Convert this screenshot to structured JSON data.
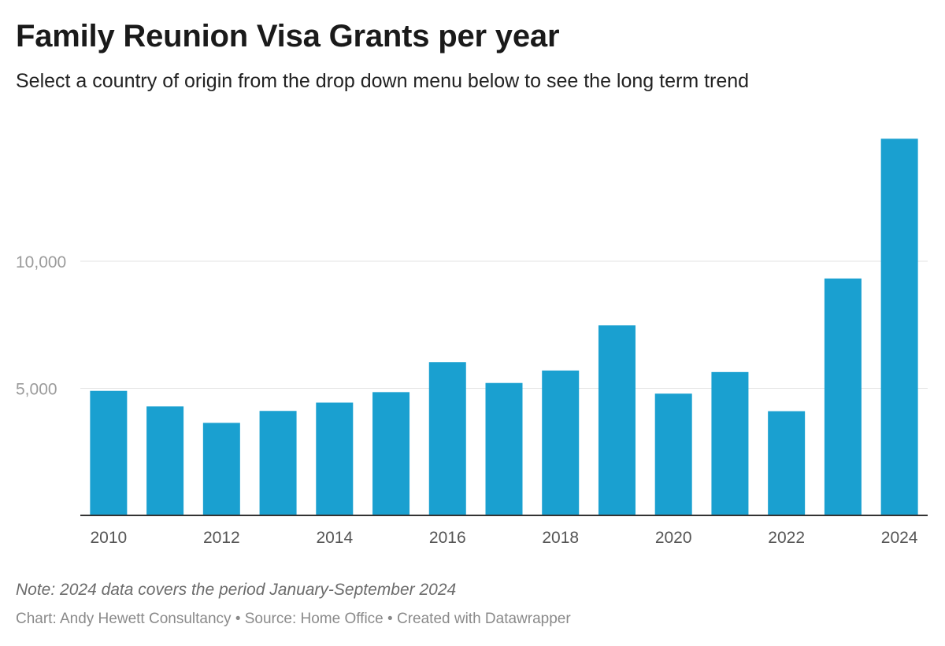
{
  "title": "Family Reunion Visa Grants per year",
  "subtitle": "Select a country of origin from the drop down menu below to see the long term trend",
  "note": "Note: 2024 data covers the period January-September 2024",
  "byline": {
    "chart_by": "Chart: Andy Hewett Consultancy",
    "separator": "•",
    "source": "Source: Home Office",
    "created_with": "Created with Datawrapper"
  },
  "colors": {
    "bar": "#1aa0d0"
  },
  "chart_data": {
    "type": "bar",
    "title": "Family Reunion Visa Grants per year",
    "subtitle": "Select a country of origin from the drop down menu below to see the long term trend",
    "categories": [
      "2010",
      "2011",
      "2012",
      "2013",
      "2014",
      "2015",
      "2016",
      "2017",
      "2018",
      "2019",
      "2020",
      "2021",
      "2022",
      "2023",
      "2024"
    ],
    "values": [
      4900,
      4290,
      3640,
      4110,
      4440,
      4850,
      6030,
      5210,
      5700,
      7480,
      4790,
      5640,
      4100,
      9320,
      14820
    ],
    "x_tick_labels": [
      "2010",
      "2012",
      "2014",
      "2016",
      "2018",
      "2020",
      "2022",
      "2024"
    ],
    "y_ticks": [
      {
        "value": 5000,
        "label": "5,000"
      },
      {
        "value": 10000,
        "label": "10,000"
      }
    ],
    "ylim": [
      0,
      15000
    ],
    "grid": true,
    "legend": "none"
  }
}
